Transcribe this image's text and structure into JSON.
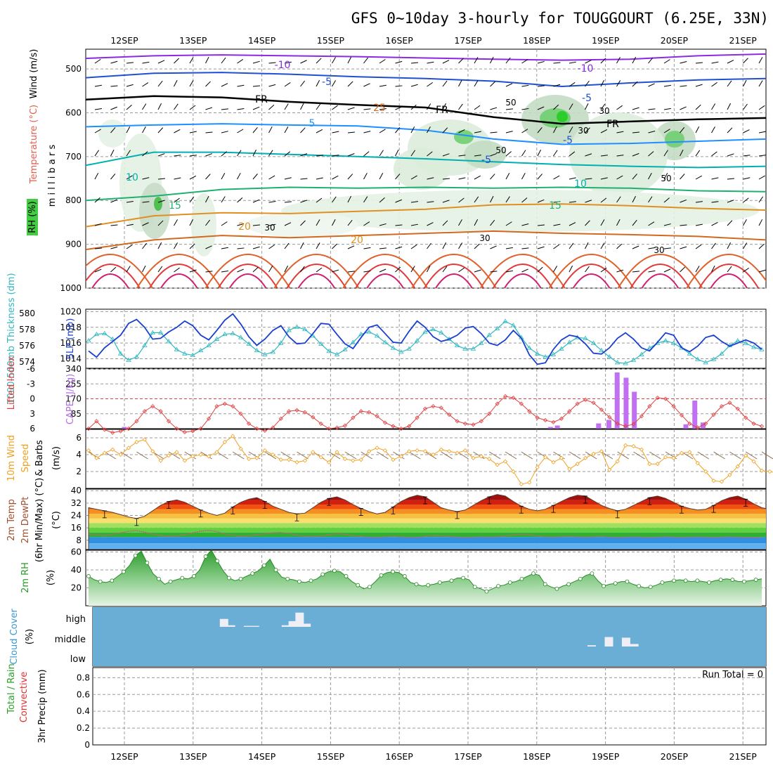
{
  "title": "GFS 0~10day 3-hourly for TOUGGOURT (6.25E, 33N)",
  "chart_data": [
    {
      "type": "contour",
      "panel": "upper-air",
      "ylabels": [
        "Temperature (°C)",
        "Wind (m/s)",
        "m i l l i b a r s",
        "RH (%)"
      ],
      "yticks": [
        "500",
        "600",
        "700",
        "800",
        "900",
        "1000"
      ],
      "x": [
        "12SEP",
        "13SEP",
        "14SEP",
        "15SEP",
        "16SEP",
        "17SEP",
        "18SEP",
        "19SEP",
        "20SEP",
        "21SEP"
      ],
      "contour_labels": {
        "temperature": [
          "-10",
          "-10",
          "-5",
          "-5",
          "-5",
          "FR",
          "FR",
          "FR",
          "5",
          "-5",
          "10",
          "10",
          "15",
          "15",
          "20",
          "20",
          "25"
        ],
        "rh": [
          "30",
          "30",
          "50",
          "30",
          "50",
          "30",
          "50",
          "30"
        ]
      },
      "isotherms": [
        {
          "label": "-10",
          "color": "#8a2be2",
          "p": [
            476,
            470,
            468,
            470,
            472,
            475,
            478,
            480,
            478,
            470,
            466
          ]
        },
        {
          "label": "-5",
          "color": "#2050d0",
          "p": [
            520,
            510,
            508,
            512,
            518,
            522,
            528,
            540,
            532,
            525,
            522
          ]
        },
        {
          "label": "FR",
          "color": "#000000",
          "p": [
            570,
            562,
            565,
            575,
            582,
            588,
            610,
            625,
            620,
            615,
            612
          ]
        },
        {
          "label": "5",
          "color": "#1e90ff",
          "p": [
            632,
            628,
            625,
            628,
            630,
            640,
            660,
            672,
            670,
            665,
            660
          ]
        },
        {
          "label": "10",
          "color": "#00b0b0",
          "p": [
            720,
            690,
            690,
            695,
            700,
            705,
            712,
            718,
            722,
            725,
            722
          ]
        },
        {
          "label": "15",
          "color": "#20b070",
          "p": [
            800,
            790,
            775,
            770,
            772,
            770,
            772,
            770,
            772,
            778,
            780
          ]
        },
        {
          "label": "20",
          "color": "#e09020",
          "p": [
            860,
            835,
            828,
            830,
            825,
            820,
            810,
            808,
            812,
            818,
            822
          ]
        },
        {
          "label": "25",
          "color": "#d2691e",
          "p": [
            912,
            890,
            880,
            885,
            880,
            875,
            870,
            875,
            878,
            882,
            890
          ]
        }
      ]
    },
    {
      "type": "line",
      "panel": "thickness-slp",
      "ylabels": [
        "1000-500mb Thickness (dm)",
        "SLP (mb)"
      ],
      "yticks_left": [
        "580",
        "578",
        "576",
        "574"
      ],
      "yticks_right": [
        "1020",
        "1018",
        "1016",
        "1014"
      ],
      "series": [
        {
          "name": "Thickness (dm)",
          "color": "#30b8c0",
          "values": [
            576.6,
            577.4,
            577.5,
            576.8,
            575.0,
            574.2,
            574.6,
            576.0,
            577.6,
            577.6,
            576.5,
            575.5,
            575.0,
            574.8,
            575.4,
            576.0,
            576.8,
            577.4,
            577.5,
            577.0,
            576.2,
            575.4,
            574.9,
            575.2,
            576.3,
            577.9,
            578.3,
            578.0,
            577.2,
            576.2,
            575.3,
            574.9,
            575.5,
            576.4,
            577.4,
            577.7,
            577.2,
            576.4,
            575.7,
            575.2,
            575.6,
            576.6,
            577.7,
            578.0,
            577.6,
            576.8,
            576.0,
            575.6,
            575.6,
            576.3,
            577.3,
            578.1,
            579.0,
            578.5,
            577.0,
            575.7,
            575.0,
            574.6,
            574.9,
            575.6,
            576.4,
            577.0,
            576.9,
            576.3,
            575.4,
            574.6,
            573.9,
            573.8,
            574.2,
            574.9,
            575.7,
            576.3,
            576.6,
            576.3,
            575.7,
            575.0,
            574.3,
            573.9,
            574.3,
            575.0,
            576.0,
            576.6,
            576.3,
            575.8,
            575.5
          ]
        },
        {
          "name": "SLP (mb)",
          "color": "#1a3fd0",
          "values": [
            1015.0,
            1014.2,
            1015.4,
            1016.2,
            1017.0,
            1018.5,
            1019.0,
            1018.0,
            1016.5,
            1016.6,
            1017.4,
            1018.0,
            1018.8,
            1018.2,
            1017.0,
            1016.4,
            1017.6,
            1018.9,
            1019.7,
            1018.4,
            1016.8,
            1015.7,
            1016.5,
            1017.6,
            1018.2,
            1016.8,
            1015.9,
            1016.0,
            1017.2,
            1018.5,
            1018.4,
            1017.1,
            1015.9,
            1015.3,
            1016.7,
            1018.0,
            1018.3,
            1017.2,
            1016.1,
            1016.0,
            1017.5,
            1018.8,
            1018.0,
            1016.8,
            1016.2,
            1016.5,
            1017.0,
            1017.9,
            1018.1,
            1017.2,
            1016.0,
            1015.7,
            1016.4,
            1017.6,
            1016.6,
            1014.5,
            1013.3,
            1013.5,
            1015.2,
            1016.4,
            1017.0,
            1016.8,
            1015.9,
            1014.7,
            1014.6,
            1015.4,
            1016.6,
            1017.3,
            1016.5,
            1015.4,
            1015.0,
            1016.1,
            1017.3,
            1017.0,
            1015.4,
            1014.9,
            1015.6,
            1016.7,
            1017.0,
            1016.2,
            1015.6,
            1016.0,
            1016.4,
            1016.0,
            1015.2
          ]
        }
      ]
    },
    {
      "type": "bar+line",
      "panel": "lifted-cape",
      "ylabels": [
        "Lifted Index",
        "CAPE (J/kg)"
      ],
      "yticks_left": [
        "-6",
        "-3",
        "0",
        "3",
        "6"
      ],
      "yticks_right": [
        "340",
        "255",
        "170",
        "85"
      ],
      "lifted_index": [
        6.0,
        4.5,
        6.2,
        6.8,
        6.5,
        6.0,
        4.5,
        2.5,
        1.5,
        2.5,
        4.5,
        6.0,
        6.7,
        6.5,
        6.0,
        4.0,
        1.5,
        1.0,
        1.5,
        3.0,
        5.0,
        6.0,
        6.4,
        5.8,
        4.0,
        2.5,
        2.3,
        2.7,
        3.7,
        5.0,
        6.0,
        5.8,
        5.4,
        3.8,
        2.5,
        2.7,
        3.5,
        4.8,
        5.5,
        6.0,
        5.5,
        3.8,
        2.0,
        1.5,
        1.8,
        3.2,
        4.5,
        5.0,
        5.2,
        4.5,
        3.0,
        1.0,
        -0.5,
        -0.2,
        1.0,
        2.5,
        3.8,
        4.3,
        4.7,
        4.0,
        2.5,
        1.0,
        0.2,
        0.8,
        2.2,
        3.7,
        5.0,
        5.5,
        5.1,
        3.5,
        1.5,
        -0.2,
        0.0,
        1.5,
        3.3,
        5.0,
        5.8,
        5.0,
        3.2,
        1.5,
        0.8,
        2.0,
        3.8,
        5.0,
        5.5
      ],
      "cape": [
        {
          "day": 0.0,
          "v": 10
        },
        {
          "day": 6.2,
          "v": 10
        },
        {
          "day": 6.3,
          "v": 18
        },
        {
          "day": 6.9,
          "v": 30
        },
        {
          "day": 7.05,
          "v": 50
        },
        {
          "day": 7.17,
          "v": 320
        },
        {
          "day": 7.3,
          "v": 290
        },
        {
          "day": 7.42,
          "v": 210
        },
        {
          "day": 8.17,
          "v": 25
        },
        {
          "day": 8.3,
          "v": 160
        },
        {
          "day": 8.42,
          "v": 35
        }
      ]
    },
    {
      "type": "line",
      "panel": "wind10m",
      "ylabels": [
        "10m Wind Speed & Barbs (m/s)"
      ],
      "yticks": [
        "6",
        "4",
        "2"
      ],
      "series": [
        {
          "name": "10m Wind Speed",
          "color": "#f0a020",
          "values": [
            4.5,
            3.6,
            4.2,
            4.6,
            4.0,
            4.8,
            5.5,
            5.8,
            4.4,
            3.3,
            3.9,
            4.3,
            3.3,
            3.8,
            4.0,
            3.8,
            4.3,
            5.5,
            6.2,
            4.7,
            3.5,
            3.6,
            4.5,
            4.0,
            3.4,
            3.4,
            3.1,
            3.3,
            4.3,
            3.7,
            3.1,
            4.3,
            3.5,
            3.3,
            3.4,
            4.4,
            4.8,
            4.5,
            3.4,
            3.8,
            4.4,
            4.5,
            4.4,
            4.0,
            4.6,
            4.4,
            4.2,
            4.5,
            3.6,
            3.8,
            3.5,
            2.8,
            3.2,
            2.0,
            0.5,
            0.7,
            2.5,
            3.7,
            3.1,
            3.6,
            2.3,
            2.9,
            3.6,
            4.1,
            4.4,
            2.2,
            3.2,
            5.1,
            5.0,
            4.6,
            2.9,
            2.9,
            3.7,
            3.6,
            4.2,
            4.3,
            3.0,
            2.0,
            0.9,
            0.8,
            1.6,
            2.6,
            3.9,
            3.2,
            2.1,
            2.0,
            1.8
          ]
        }
      ]
    },
    {
      "type": "area",
      "panel": "temp2m",
      "ylabels": [
        "2m Temp",
        "2m DewPt",
        "(6hr Min/Max) (°C)"
      ],
      "yticks": [
        "40",
        "32",
        "24",
        "16",
        "8"
      ],
      "temperature": [
        29.0,
        28.0,
        27.0,
        26.0,
        24.5,
        23.0,
        22.0,
        23.5,
        27.0,
        30.5,
        33.0,
        34.0,
        32.5,
        30.0,
        27.5,
        25.5,
        24.0,
        25.5,
        29.5,
        32.5,
        34.5,
        35.5,
        33.0,
        30.0,
        28.0,
        26.0,
        25.0,
        25.5,
        29.0,
        32.5,
        35.0,
        36.0,
        34.0,
        31.0,
        28.5,
        26.5,
        25.0,
        26.0,
        29.5,
        33.0,
        35.5,
        37.0,
        36.0,
        32.5,
        29.0,
        27.5,
        26.5,
        27.5,
        30.5,
        33.5,
        36.0,
        37.5,
        36.5,
        33.0,
        30.0,
        28.0,
        27.0,
        28.0,
        30.5,
        33.0,
        35.5,
        37.0,
        36.5,
        33.5,
        30.5,
        28.5,
        27.0,
        28.0,
        30.5,
        33.0,
        35.5,
        36.5,
        35.0,
        32.5,
        30.0,
        28.5,
        27.5,
        28.0,
        30.5,
        33.5,
        35.5,
        36.5,
        34.5,
        31.5,
        29.0,
        28.0,
        27.5
      ],
      "dewpoint": [
        12.0,
        11.5,
        11.0,
        11.8,
        12.8,
        13.8,
        14.2,
        13.2,
        12.0,
        11.0,
        10.5,
        10.8,
        11.5,
        12.8,
        13.8,
        14.3,
        13.5,
        12.0,
        11.2,
        10.5,
        10.8,
        11.5,
        12.2,
        12.8,
        13.0,
        12.3,
        11.2,
        10.5,
        10.3,
        10.8,
        11.5,
        12.2,
        11.8,
        11.0,
        10.5,
        10.0,
        9.8,
        10.2,
        10.5,
        10.2,
        9.8,
        9.8,
        10.5,
        11.0,
        11.0,
        10.5,
        10.0,
        9.8,
        10.0,
        10.2,
        10.0,
        10.2,
        10.8,
        11.5,
        12.0,
        11.5,
        10.8,
        10.2,
        10.0,
        10.3,
        10.5,
        10.2,
        10.0,
        10.2,
        10.5,
        10.0,
        9.8,
        10.0,
        10.2,
        10.0,
        9.8,
        10.0,
        10.3,
        10.0,
        9.8,
        10.0,
        10.2,
        10.0,
        9.8,
        10.0,
        10.2,
        10.0,
        9.8,
        9.8,
        9.7
      ]
    },
    {
      "type": "area",
      "panel": "rh2m",
      "ylabels": [
        "2m RH (%)"
      ],
      "yticks": [
        "60",
        "40",
        "20"
      ],
      "values": [
        33,
        29,
        27,
        26,
        28,
        33,
        38,
        45,
        56,
        61,
        48,
        36,
        30,
        24,
        27,
        29,
        31,
        30,
        33,
        40,
        55,
        62,
        50,
        39,
        31,
        28,
        30,
        33,
        36,
        39,
        45,
        52,
        40,
        32,
        30,
        29,
        27,
        26,
        28,
        30,
        35,
        38,
        39,
        38,
        33,
        27,
        23,
        19,
        21,
        27,
        34,
        37,
        38,
        37,
        33,
        26,
        24,
        22,
        23,
        24,
        26,
        27,
        28,
        31,
        31,
        29,
        21,
        19,
        16,
        19,
        22,
        23,
        26,
        27,
        30,
        33,
        36,
        34,
        24,
        21,
        19,
        22,
        24,
        27,
        30,
        34,
        36,
        28,
        22,
        24,
        25,
        27,
        27,
        24,
        22,
        20,
        21,
        23,
        26,
        27,
        28,
        29,
        28,
        27,
        28,
        27,
        26,
        28,
        29,
        30,
        29,
        27,
        27,
        28,
        29,
        30
      ]
    },
    {
      "type": "bar",
      "panel": "cloud-cover",
      "ylabels": [
        "Cloud Cover (%)"
      ],
      "yticks": [
        "high",
        "middle",
        "low"
      ],
      "bars": [
        {
          "level": "high",
          "day": 1.45,
          "v": 25
        },
        {
          "level": "high",
          "day": 1.55,
          "v": 5
        },
        {
          "level": "high",
          "day": 1.8,
          "v": 3
        },
        {
          "level": "high",
          "day": 1.9,
          "v": 3
        },
        {
          "level": "high",
          "day": 2.35,
          "v": 5
        },
        {
          "level": "high",
          "day": 2.45,
          "v": 18
        },
        {
          "level": "high",
          "day": 2.55,
          "v": 45
        },
        {
          "level": "high",
          "day": 2.65,
          "v": 10
        },
        {
          "level": "middle",
          "day": 6.8,
          "v": 4
        },
        {
          "level": "middle",
          "day": 7.05,
          "v": 30
        },
        {
          "level": "middle",
          "day": 7.3,
          "v": 28
        },
        {
          "level": "middle",
          "day": 7.42,
          "v": 8
        }
      ]
    },
    {
      "type": "bar",
      "panel": "precip",
      "ylabels": [
        "Total / Rain",
        "Convective",
        "3hr Precip (mm)"
      ],
      "yticks": [
        "0.8",
        "0.6",
        "0.4",
        "0.2",
        "0"
      ],
      "run_total": "Run Total = 0",
      "values": []
    }
  ]
}
